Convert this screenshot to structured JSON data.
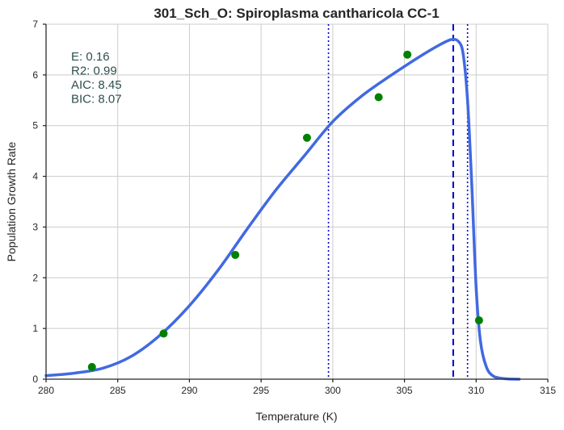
{
  "chart_data": {
    "type": "line",
    "title": "301_Sch_O: Spiroplasma cantharicola CC-1",
    "xlabel": "Temperature (K)",
    "ylabel": "Population Growth Rate",
    "xlim": [
      280,
      315
    ],
    "ylim": [
      0,
      7
    ],
    "xticks": [
      280,
      285,
      290,
      295,
      300,
      305,
      310,
      315
    ],
    "yticks": [
      0,
      1,
      2,
      3,
      4,
      5,
      6,
      7
    ],
    "grid": true,
    "colors": {
      "fit": "#4169e1",
      "points": "#008000",
      "vlines": "#0000cc"
    },
    "stats": [
      "E:  0.16",
      "R2:  0.99",
      "AIC: 8.45",
      "BIC: 8.07"
    ],
    "points": [
      {
        "x": 283.2,
        "y": 0.24
      },
      {
        "x": 288.2,
        "y": 0.9
      },
      {
        "x": 293.2,
        "y": 2.45
      },
      {
        "x": 298.2,
        "y": 4.76
      },
      {
        "x": 303.2,
        "y": 5.56
      },
      {
        "x": 305.2,
        "y": 6.4
      },
      {
        "x": 310.2,
        "y": 1.16
      }
    ],
    "fit_curve": [
      {
        "x": 280.0,
        "y": 0.07
      },
      {
        "x": 282.0,
        "y": 0.12
      },
      {
        "x": 284.0,
        "y": 0.22
      },
      {
        "x": 286.0,
        "y": 0.46
      },
      {
        "x": 288.0,
        "y": 0.88
      },
      {
        "x": 290.0,
        "y": 1.45
      },
      {
        "x": 292.0,
        "y": 2.15
      },
      {
        "x": 294.0,
        "y": 2.95
      },
      {
        "x": 296.0,
        "y": 3.72
      },
      {
        "x": 298.0,
        "y": 4.4
      },
      {
        "x": 300.0,
        "y": 5.08
      },
      {
        "x": 302.0,
        "y": 5.58
      },
      {
        "x": 304.0,
        "y": 5.98
      },
      {
        "x": 306.0,
        "y": 6.35
      },
      {
        "x": 307.5,
        "y": 6.6
      },
      {
        "x": 308.3,
        "y": 6.7
      },
      {
        "x": 308.8,
        "y": 6.65
      },
      {
        "x": 309.1,
        "y": 6.4
      },
      {
        "x": 309.4,
        "y": 5.5
      },
      {
        "x": 309.7,
        "y": 3.8
      },
      {
        "x": 310.0,
        "y": 1.8
      },
      {
        "x": 310.3,
        "y": 0.75
      },
      {
        "x": 310.7,
        "y": 0.25
      },
      {
        "x": 311.2,
        "y": 0.06
      },
      {
        "x": 312.0,
        "y": 0.01
      },
      {
        "x": 313.0,
        "y": 0.0
      }
    ],
    "vlines": [
      {
        "x": 299.7,
        "style": "dotted"
      },
      {
        "x": 308.4,
        "style": "dashed"
      },
      {
        "x": 309.4,
        "style": "dotted"
      }
    ]
  }
}
